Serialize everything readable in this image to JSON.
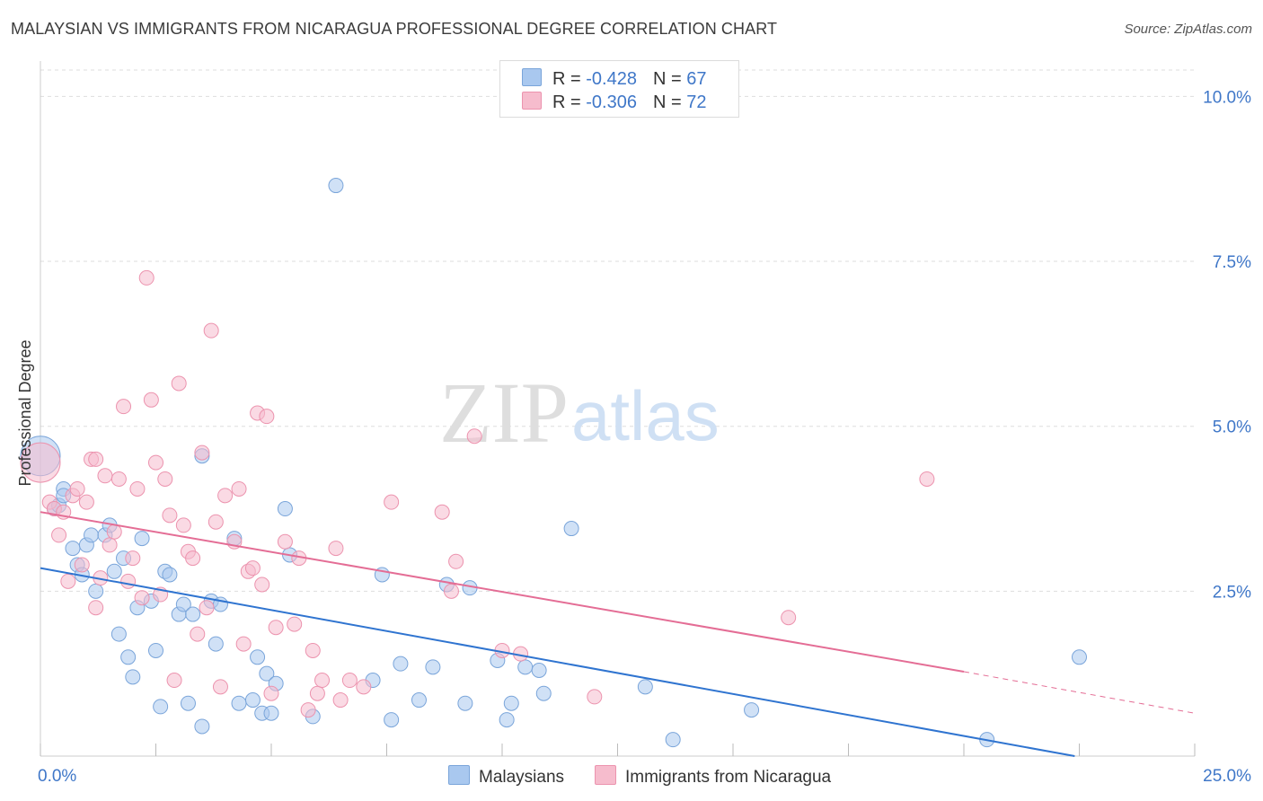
{
  "title": "MALAYSIAN VS IMMIGRANTS FROM NICARAGUA PROFESSIONAL DEGREE CORRELATION CHART",
  "source": "Source: ZipAtlas.com",
  "watermark": {
    "zip": "ZIP",
    "atlas": "atlas"
  },
  "legend": {
    "rows": [
      {
        "r_label": "R = ",
        "r_value": "-0.428",
        "n_label": "N = ",
        "n_value": "67"
      },
      {
        "r_label": "R = ",
        "r_value": "-0.306",
        "n_label": "N = ",
        "n_value": "72"
      }
    ]
  },
  "bottom_legend": [
    "Malaysians",
    "Immigrants from Nicaragua"
  ],
  "colors": {
    "blue_fill": "#a9c8ef",
    "blue_stroke": "#7aa5da",
    "blue_line": "#2f74d0",
    "pink_fill": "#f6bccd",
    "pink_stroke": "#ec93ae",
    "pink_line": "#e46d95",
    "axis_label": "#3f77c8",
    "grid": "#dddddd"
  },
  "chart_data": {
    "type": "scatter",
    "title": "MALAYSIAN VS IMMIGRANTS FROM NICARAGUA PROFESSIONAL DEGREE CORRELATION CHART",
    "xlabel": "",
    "ylabel": "Professional Degree",
    "xlim": [
      0,
      25
    ],
    "ylim": [
      0,
      10.4
    ],
    "x_tick_labels": [
      "0.0%",
      "25.0%"
    ],
    "y_ticks": [
      2.5,
      5.0,
      7.5,
      10.0
    ],
    "y_tick_labels": [
      "2.5%",
      "5.0%",
      "7.5%",
      "10.0%"
    ],
    "grid": true,
    "series": [
      {
        "name": "Malaysians",
        "R": -0.428,
        "N": 67,
        "trend": {
          "x0": 0,
          "y0": 2.85,
          "x1": 22.4,
          "y1": 0.0
        },
        "points": [
          {
            "x": 0.0,
            "y": 4.55,
            "big": true
          },
          {
            "x": 0.3,
            "y": 3.75
          },
          {
            "x": 0.4,
            "y": 3.8
          },
          {
            "x": 0.5,
            "y": 4.05
          },
          {
            "x": 0.5,
            "y": 3.95
          },
          {
            "x": 0.7,
            "y": 3.15
          },
          {
            "x": 0.8,
            "y": 2.9
          },
          {
            "x": 0.9,
            "y": 2.75
          },
          {
            "x": 1.0,
            "y": 3.2
          },
          {
            "x": 1.1,
            "y": 3.35
          },
          {
            "x": 1.2,
            "y": 2.5
          },
          {
            "x": 1.4,
            "y": 3.35
          },
          {
            "x": 1.5,
            "y": 3.5
          },
          {
            "x": 1.6,
            "y": 2.8
          },
          {
            "x": 1.7,
            "y": 1.85
          },
          {
            "x": 1.8,
            "y": 3.0
          },
          {
            "x": 1.9,
            "y": 1.5
          },
          {
            "x": 2.0,
            "y": 1.2
          },
          {
            "x": 2.1,
            "y": 2.25
          },
          {
            "x": 2.2,
            "y": 3.3
          },
          {
            "x": 2.4,
            "y": 2.35
          },
          {
            "x": 2.5,
            "y": 1.6
          },
          {
            "x": 2.6,
            "y": 0.75
          },
          {
            "x": 2.7,
            "y": 2.8
          },
          {
            "x": 2.8,
            "y": 2.75
          },
          {
            "x": 3.0,
            "y": 2.15
          },
          {
            "x": 3.1,
            "y": 2.3
          },
          {
            "x": 3.2,
            "y": 0.8
          },
          {
            "x": 3.3,
            "y": 2.15
          },
          {
            "x": 3.5,
            "y": 4.55
          },
          {
            "x": 3.5,
            "y": 0.45
          },
          {
            "x": 3.7,
            "y": 2.35
          },
          {
            "x": 3.8,
            "y": 1.7
          },
          {
            "x": 3.9,
            "y": 2.3
          },
          {
            "x": 4.2,
            "y": 3.3
          },
          {
            "x": 4.3,
            "y": 0.8
          },
          {
            "x": 4.6,
            "y": 0.85
          },
          {
            "x": 4.7,
            "y": 1.5
          },
          {
            "x": 4.8,
            "y": 0.65
          },
          {
            "x": 4.9,
            "y": 1.25
          },
          {
            "x": 5.0,
            "y": 0.65
          },
          {
            "x": 5.1,
            "y": 1.1
          },
          {
            "x": 5.3,
            "y": 3.75
          },
          {
            "x": 5.4,
            "y": 3.05
          },
          {
            "x": 5.9,
            "y": 0.6
          },
          {
            "x": 6.4,
            "y": 8.65
          },
          {
            "x": 7.2,
            "y": 1.15
          },
          {
            "x": 7.4,
            "y": 2.75
          },
          {
            "x": 7.6,
            "y": 0.55
          },
          {
            "x": 7.8,
            "y": 1.4
          },
          {
            "x": 8.2,
            "y": 0.85
          },
          {
            "x": 8.5,
            "y": 1.35
          },
          {
            "x": 8.8,
            "y": 2.6
          },
          {
            "x": 9.2,
            "y": 0.8
          },
          {
            "x": 9.3,
            "y": 2.55
          },
          {
            "x": 9.9,
            "y": 1.45
          },
          {
            "x": 10.1,
            "y": 0.55
          },
          {
            "x": 10.2,
            "y": 0.8
          },
          {
            "x": 10.5,
            "y": 1.35
          },
          {
            "x": 10.8,
            "y": 1.3
          },
          {
            "x": 10.9,
            "y": 0.95
          },
          {
            "x": 11.5,
            "y": 3.45
          },
          {
            "x": 13.1,
            "y": 1.05
          },
          {
            "x": 13.7,
            "y": 0.25
          },
          {
            "x": 15.4,
            "y": 0.7
          },
          {
            "x": 20.5,
            "y": 0.25
          },
          {
            "x": 22.5,
            "y": 1.5
          }
        ]
      },
      {
        "name": "Immigrants from Nicaragua",
        "R": -0.306,
        "N": 72,
        "trend": {
          "x0": 0,
          "y0": 3.7,
          "x1": 20.0,
          "y1": 1.28,
          "dash_to_x": 25.0,
          "dash_to_y": 0.65
        },
        "points": [
          {
            "x": 0.0,
            "y": 4.45,
            "big": true
          },
          {
            "x": 0.2,
            "y": 3.85
          },
          {
            "x": 0.3,
            "y": 3.75
          },
          {
            "x": 0.4,
            "y": 3.35
          },
          {
            "x": 0.5,
            "y": 3.7
          },
          {
            "x": 0.6,
            "y": 2.65
          },
          {
            "x": 0.7,
            "y": 3.95
          },
          {
            "x": 0.8,
            "y": 4.05
          },
          {
            "x": 0.9,
            "y": 2.9
          },
          {
            "x": 1.0,
            "y": 3.85
          },
          {
            "x": 1.1,
            "y": 4.5
          },
          {
            "x": 1.2,
            "y": 4.5
          },
          {
            "x": 1.2,
            "y": 2.25
          },
          {
            "x": 1.3,
            "y": 2.7
          },
          {
            "x": 1.4,
            "y": 4.25
          },
          {
            "x": 1.5,
            "y": 3.2
          },
          {
            "x": 1.6,
            "y": 3.4
          },
          {
            "x": 1.7,
            "y": 4.2
          },
          {
            "x": 1.8,
            "y": 5.3
          },
          {
            "x": 1.9,
            "y": 2.65
          },
          {
            "x": 2.0,
            "y": 3.0
          },
          {
            "x": 2.1,
            "y": 4.05
          },
          {
            "x": 2.2,
            "y": 2.4
          },
          {
            "x": 2.3,
            "y": 7.25
          },
          {
            "x": 2.4,
            "y": 5.4
          },
          {
            "x": 2.5,
            "y": 4.45
          },
          {
            "x": 2.6,
            "y": 2.45
          },
          {
            "x": 2.7,
            "y": 4.2
          },
          {
            "x": 2.8,
            "y": 3.65
          },
          {
            "x": 2.9,
            "y": 1.15
          },
          {
            "x": 3.0,
            "y": 5.65
          },
          {
            "x": 3.1,
            "y": 3.5
          },
          {
            "x": 3.2,
            "y": 3.1
          },
          {
            "x": 3.3,
            "y": 3.0
          },
          {
            "x": 3.4,
            "y": 1.85
          },
          {
            "x": 3.5,
            "y": 4.6
          },
          {
            "x": 3.6,
            "y": 2.25
          },
          {
            "x": 3.7,
            "y": 6.45
          },
          {
            "x": 3.8,
            "y": 3.55
          },
          {
            "x": 3.9,
            "y": 1.05
          },
          {
            "x": 4.0,
            "y": 3.95
          },
          {
            "x": 4.2,
            "y": 3.25
          },
          {
            "x": 4.3,
            "y": 4.05
          },
          {
            "x": 4.4,
            "y": 1.7
          },
          {
            "x": 4.5,
            "y": 2.8
          },
          {
            "x": 4.6,
            "y": 2.85
          },
          {
            "x": 4.7,
            "y": 5.2
          },
          {
            "x": 4.8,
            "y": 2.6
          },
          {
            "x": 4.9,
            "y": 5.15
          },
          {
            "x": 5.0,
            "y": 0.95
          },
          {
            "x": 5.1,
            "y": 1.95
          },
          {
            "x": 5.3,
            "y": 3.25
          },
          {
            "x": 5.5,
            "y": 2.0
          },
          {
            "x": 5.6,
            "y": 3.0
          },
          {
            "x": 5.8,
            "y": 0.7
          },
          {
            "x": 5.9,
            "y": 1.6
          },
          {
            "x": 6.0,
            "y": 0.95
          },
          {
            "x": 6.1,
            "y": 1.15
          },
          {
            "x": 6.4,
            "y": 3.15
          },
          {
            "x": 6.5,
            "y": 0.85
          },
          {
            "x": 6.7,
            "y": 1.15
          },
          {
            "x": 7.0,
            "y": 1.05
          },
          {
            "x": 7.6,
            "y": 3.85
          },
          {
            "x": 8.7,
            "y": 3.7
          },
          {
            "x": 8.9,
            "y": 2.5
          },
          {
            "x": 9.0,
            "y": 2.95
          },
          {
            "x": 9.4,
            "y": 4.85
          },
          {
            "x": 10.0,
            "y": 1.6
          },
          {
            "x": 10.4,
            "y": 1.55
          },
          {
            "x": 12.0,
            "y": 0.9
          },
          {
            "x": 16.2,
            "y": 2.1
          },
          {
            "x": 19.2,
            "y": 4.2
          }
        ]
      }
    ]
  }
}
